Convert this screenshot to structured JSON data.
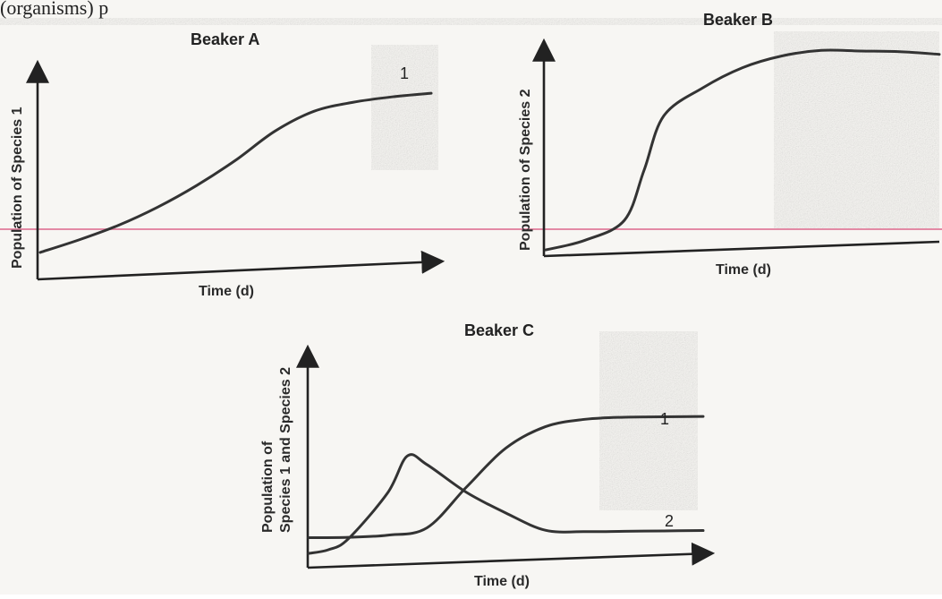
{
  "page": {
    "top_text": "(organisms) p"
  },
  "chart_data": [
    {
      "type": "line",
      "title": "Beaker A",
      "xlabel": "Time (d)",
      "ylabel": "Population of Species 1",
      "ylim": [
        0,
        1
      ],
      "series": [
        {
          "name": "1",
          "x": [
            0,
            0.1,
            0.2,
            0.3,
            0.4,
            0.5,
            0.6,
            0.7,
            0.8,
            0.9,
            1.0
          ],
          "values": [
            0.05,
            0.12,
            0.2,
            0.3,
            0.42,
            0.56,
            0.72,
            0.83,
            0.88,
            0.91,
            0.93
          ]
        }
      ]
    },
    {
      "type": "line",
      "title": "Beaker B",
      "xlabel": "Time (d)",
      "ylabel": "Population of Species 2",
      "ylim": [
        0,
        1
      ],
      "series": [
        {
          "name": "",
          "x": [
            0,
            0.1,
            0.2,
            0.25,
            0.3,
            0.4,
            0.5,
            0.6,
            0.7,
            0.8,
            0.9,
            1.0
          ],
          "values": [
            0.03,
            0.07,
            0.16,
            0.4,
            0.66,
            0.79,
            0.88,
            0.93,
            0.95,
            0.94,
            0.93,
            0.91
          ]
        }
      ]
    },
    {
      "type": "line",
      "title": "Beaker C",
      "xlabel": "Time (d)",
      "ylabel": "Population of Species 1 and Species 2",
      "ylim": [
        0,
        1
      ],
      "series": [
        {
          "name": "1",
          "x": [
            0,
            0.1,
            0.2,
            0.3,
            0.4,
            0.5,
            0.6,
            0.7,
            0.8,
            0.9,
            1.0
          ],
          "values": [
            0.12,
            0.12,
            0.13,
            0.17,
            0.4,
            0.62,
            0.74,
            0.78,
            0.79,
            0.79,
            0.79
          ]
        },
        {
          "name": "2",
          "x": [
            0,
            0.05,
            0.1,
            0.2,
            0.25,
            0.3,
            0.4,
            0.5,
            0.6,
            0.7,
            0.8,
            0.9,
            1.0
          ],
          "values": [
            0.03,
            0.05,
            0.11,
            0.37,
            0.58,
            0.53,
            0.37,
            0.25,
            0.15,
            0.14,
            0.14,
            0.14,
            0.14
          ]
        }
      ]
    }
  ]
}
